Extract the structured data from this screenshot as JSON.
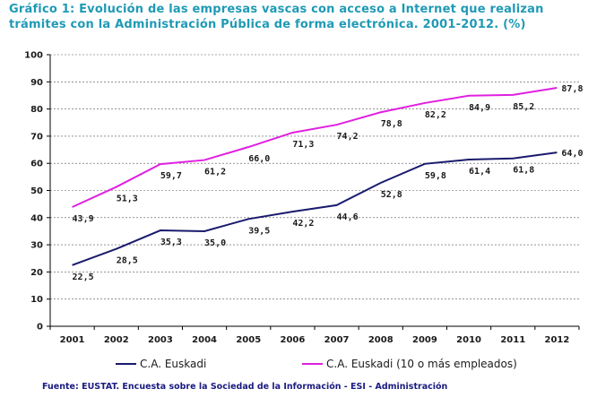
{
  "title": "Gráfico 1: Evolución de las empresas vascas con acceso a Internet que realizan trámites con la Administración Pública de forma electrónica. 2001-2012. (%)",
  "source": "Fuente: EUSTAT. Encuesta sobre la Sociedad de la Información - ESI - Administración",
  "chart_data": {
    "type": "line",
    "x": [
      "2001",
      "2002",
      "2003",
      "2004",
      "2005",
      "2006",
      "2007",
      "2008",
      "2009",
      "2010",
      "2011",
      "2012"
    ],
    "ylim": [
      0,
      100
    ],
    "yticks": [
      "0",
      "10",
      "20",
      "30",
      "40",
      "50",
      "60",
      "70",
      "80",
      "90",
      "100"
    ],
    "grid": "horizontal dashed",
    "legend": "bottom",
    "series": [
      {
        "name": "C.A. Euskadi",
        "color": "#1a1a6e",
        "values": [
          22.5,
          28.5,
          35.3,
          35.0,
          39.5,
          42.2,
          44.6,
          52.8,
          59.8,
          61.4,
          61.8,
          64.0
        ],
        "labels": [
          "22,5",
          "28,5",
          "35,3",
          "35,0",
          "39,5",
          "42,2",
          "44,6",
          "52,8",
          "59,8",
          "61,4",
          "61,8",
          "64,0"
        ]
      },
      {
        "name": "C.A. Euskadi (10 o más empleados)",
        "color": "#e020e0",
        "values": [
          43.9,
          51.3,
          59.7,
          61.2,
          66.0,
          71.3,
          74.2,
          78.8,
          82.2,
          84.9,
          85.2,
          87.8
        ],
        "labels": [
          "43,9",
          "51,3",
          "59,7",
          "61,2",
          "66,0",
          "71,3",
          "74,2",
          "78,8",
          "82,2",
          "84,9",
          "85,2",
          "87,8"
        ]
      }
    ]
  }
}
